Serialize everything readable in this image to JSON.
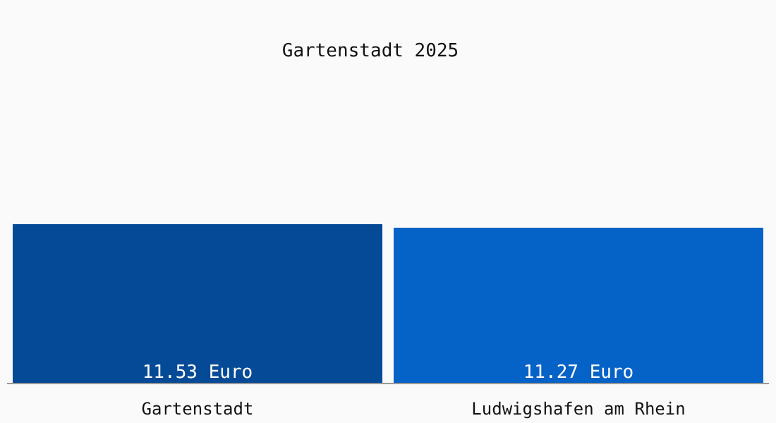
{
  "chart_data": {
    "type": "bar",
    "title": "Gartenstadt 2025",
    "categories": [
      "Gartenstadt",
      "Ludwigshafen am Rhein"
    ],
    "values": [
      11.53,
      11.27
    ],
    "colors": [
      "#044a96",
      "#0562c6"
    ],
    "value_labels": [
      "11.53 Euro",
      "11.27 Euro"
    ],
    "grid": false,
    "legend": false
  }
}
